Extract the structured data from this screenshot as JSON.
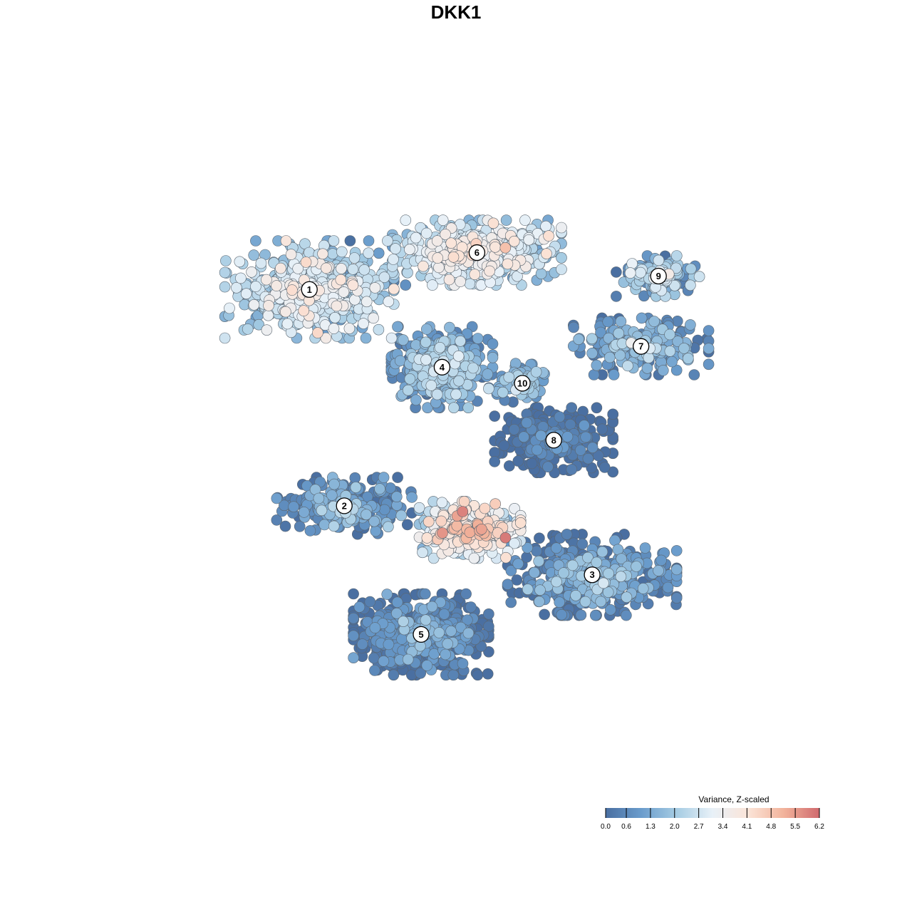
{
  "title": "DKK1",
  "chart_data": {
    "type": "scatter",
    "title": "DKK1",
    "xlabel": "",
    "ylabel": "",
    "grid": false,
    "legend_position": "bottom-right",
    "color_scale": {
      "title": "Variance, Z-scaled",
      "min": 0.0,
      "max": 6.2,
      "ticks": [
        "0.0",
        "0.6",
        "1.3",
        "2.0",
        "2.7",
        "3.4",
        "4.1",
        "4.8",
        "5.5",
        "6.2"
      ],
      "tick_values": [
        0.0,
        0.6,
        1.3,
        2.0,
        2.7,
        3.4,
        4.1,
        4.8,
        5.5,
        6.2
      ],
      "colors": [
        "#4a6fa1",
        "#6a9ccc",
        "#a6cce3",
        "#e8f1f8",
        "#fbe4d8",
        "#f2b39b",
        "#d06a6e"
      ]
    },
    "xlim": [
      0,
      100
    ],
    "ylim": [
      0,
      100
    ],
    "clusters": [
      {
        "id": "1",
        "x": 29,
        "y": 73.8,
        "sx": 10,
        "sy": 6,
        "n": 520,
        "v": 2.9,
        "vs": 0.7
      },
      {
        "id": "2",
        "x": 34,
        "y": 41.5,
        "sx": 8,
        "sy": 3.5,
        "n": 230,
        "v": 1.3,
        "vs": 0.6
      },
      {
        "id": "3",
        "x": 69.5,
        "y": 31.2,
        "sx": 10,
        "sy": 5,
        "n": 430,
        "v": 1.0,
        "vs": 0.7
      },
      {
        "id": "4",
        "x": 48,
        "y": 62.2,
        "sx": 6,
        "sy": 5,
        "n": 380,
        "v": 1.8,
        "vs": 0.6
      },
      {
        "id": "5",
        "x": 45,
        "y": 22.3,
        "sx": 8,
        "sy": 5,
        "n": 520,
        "v": 0.8,
        "vs": 0.6
      },
      {
        "id": "6",
        "x": 53,
        "y": 79.3,
        "sx": 10,
        "sy": 4,
        "n": 480,
        "v": 3.2,
        "vs": 0.6
      },
      {
        "id": "7",
        "x": 76.5,
        "y": 65.3,
        "sx": 8,
        "sy": 3.5,
        "n": 220,
        "v": 1.6,
        "vs": 0.6
      },
      {
        "id": "8",
        "x": 64,
        "y": 51.3,
        "sx": 7,
        "sy": 4,
        "n": 300,
        "v": 0.4,
        "vs": 0.4
      },
      {
        "id": "9",
        "x": 79,
        "y": 75.8,
        "sx": 5,
        "sy": 2.5,
        "n": 120,
        "v": 2.0,
        "vs": 0.8
      },
      {
        "id": "10",
        "x": 59.5,
        "y": 59.8,
        "sx": 3,
        "sy": 2.5,
        "n": 80,
        "v": 1.9,
        "vs": 0.5
      },
      {
        "id": "center",
        "x": 52,
        "y": 37.9,
        "sx": 6,
        "sy": 3.5,
        "n": 330,
        "v": 3.9,
        "vs": 0.8
      }
    ],
    "points_shown": 4000
  }
}
